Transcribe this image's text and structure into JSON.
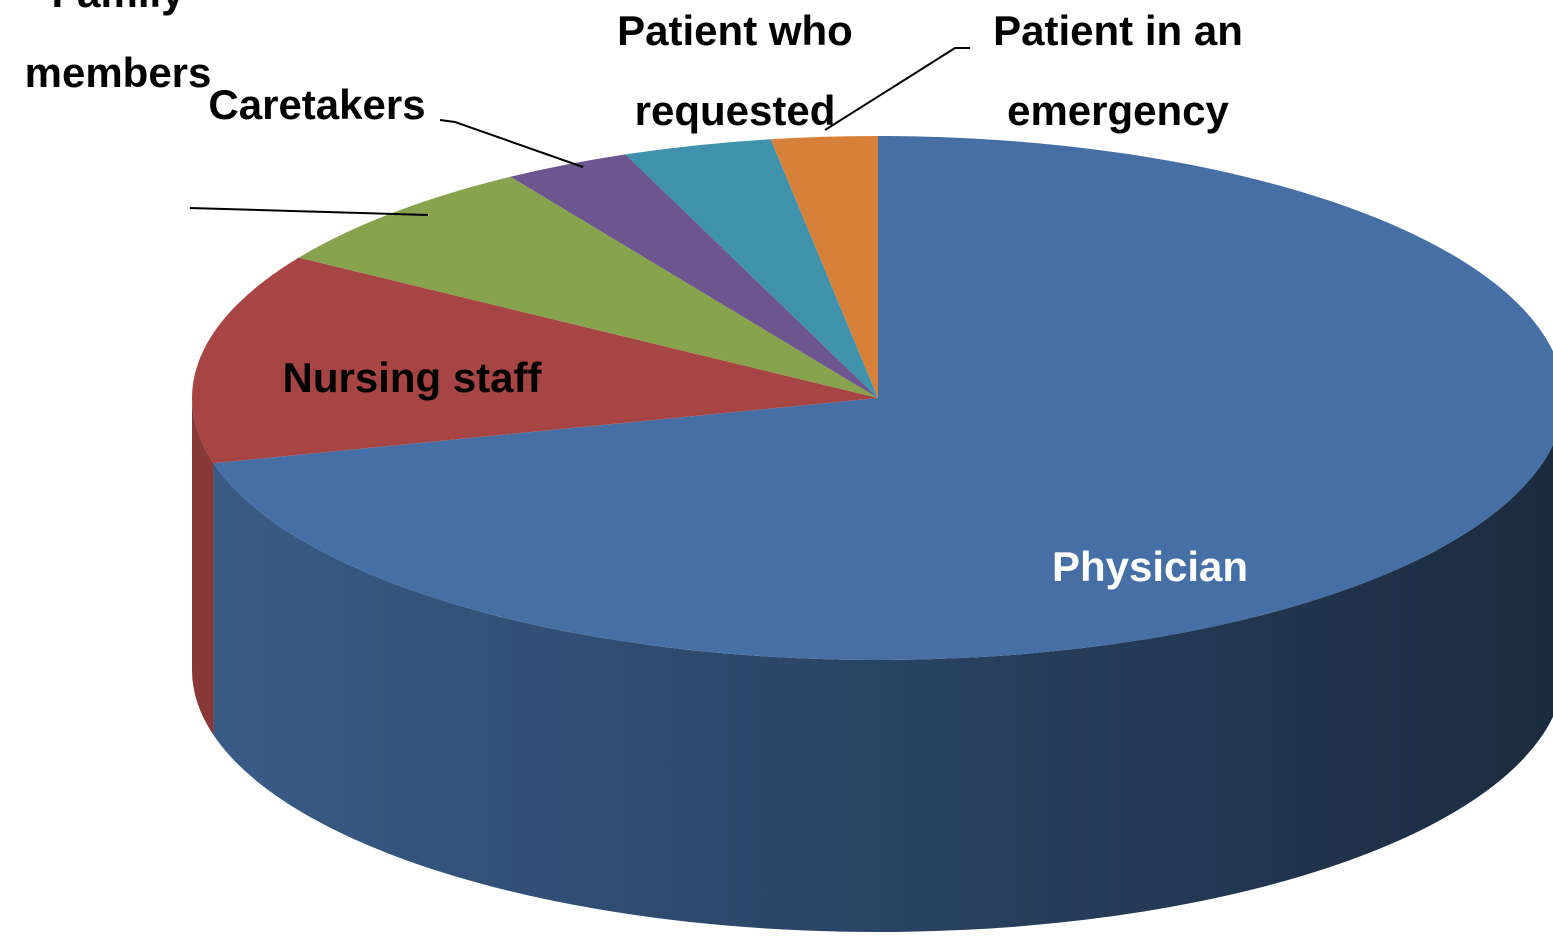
{
  "chart_data": {
    "type": "pie",
    "categories": [
      "Physician",
      "Nursing staff",
      "Family members",
      "Caretakers",
      "Patient who requested",
      "Patient in an emergency"
    ],
    "values": [
      71,
      13,
      7,
      3,
      3.5,
      2.5
    ],
    "colors": [
      "#4670a5",
      "#a64543",
      "#88a34d",
      "#6d5690",
      "#3f92ab",
      "#d7803a"
    ]
  }
}
